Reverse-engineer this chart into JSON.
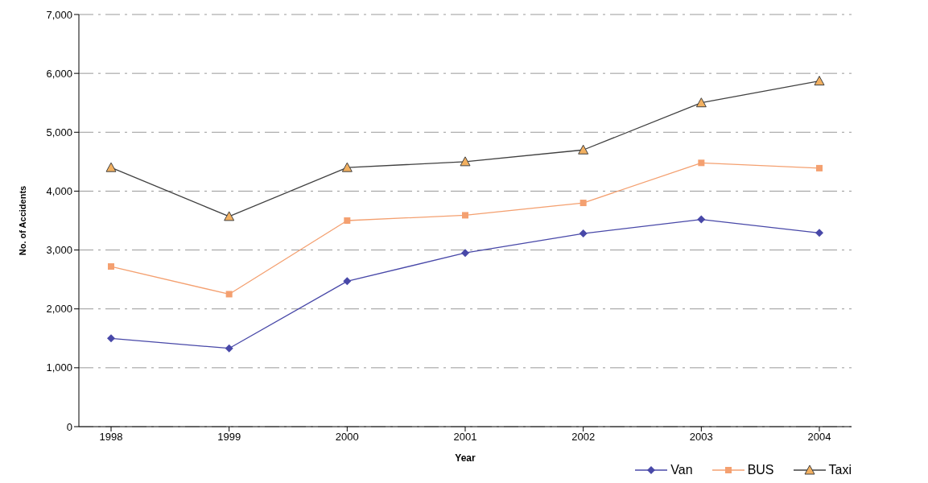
{
  "chart_data": {
    "type": "line",
    "xlabel": "Year",
    "ylabel": "No. of Accidents",
    "categories": [
      "1998",
      "1999",
      "2000",
      "2001",
      "2002",
      "2003",
      "2004"
    ],
    "series": [
      {
        "name": "Van",
        "color": "#4848a8",
        "marker": "diamond",
        "values": [
          1500,
          1330,
          2470,
          2950,
          3280,
          3520,
          3290
        ]
      },
      {
        "name": "BUS",
        "color": "#f4a070",
        "marker": "square",
        "values": [
          2720,
          2250,
          3500,
          3590,
          3800,
          4480,
          4390
        ]
      },
      {
        "name": "Taxi",
        "color": "#404040",
        "marker": "triangle",
        "values": [
          4400,
          3570,
          4400,
          4500,
          4700,
          5500,
          5870
        ]
      }
    ],
    "ylim": [
      0,
      7000
    ],
    "yticks": [
      0,
      {
        "value": 1000,
        "label": "1,000"
      },
      {
        "value": 2000,
        "label": "2,000"
      },
      {
        "value": 3000,
        "label": "3,000"
      },
      {
        "value": 4000,
        "label": "4,000"
      },
      {
        "value": 5000,
        "label": "5,000"
      },
      {
        "value": 6000,
        "label": "6,000"
      },
      {
        "value": 7000,
        "label": "7,000"
      }
    ],
    "grid": "y",
    "legend": "bottom right"
  }
}
